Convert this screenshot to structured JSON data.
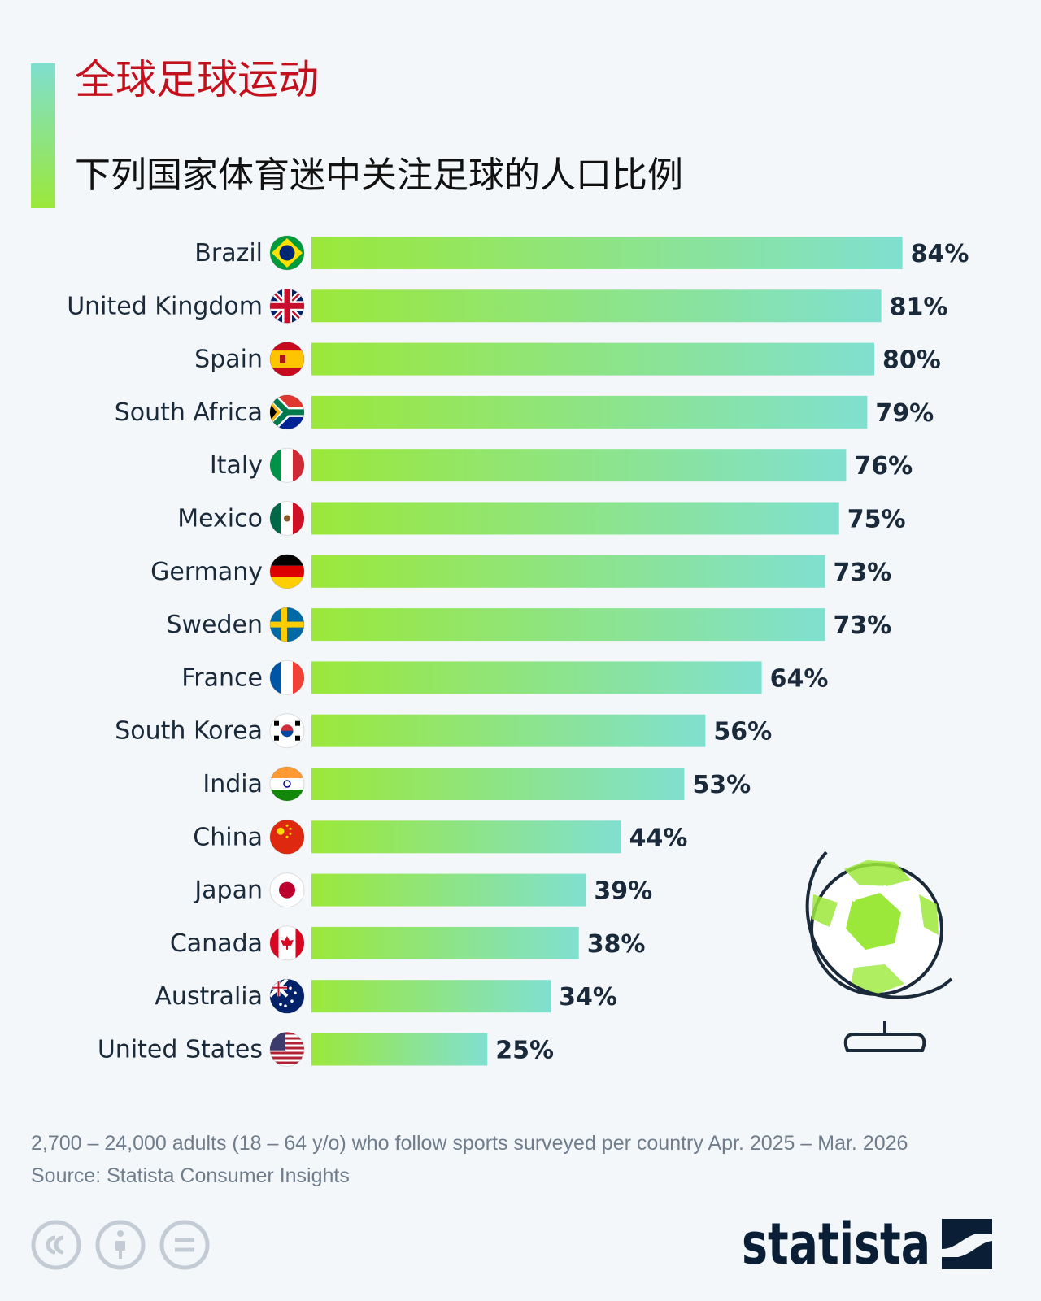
{
  "title": "全球足球运动",
  "subtitle": "下列国家体育迷中关注足球的人口比例",
  "colors": {
    "title": "#c4101c",
    "bar_start": "#9be83a",
    "bar_end": "#80e0d0",
    "text_dark": "#1a2a3a"
  },
  "chart_data": {
    "type": "bar",
    "orientation": "horizontal",
    "title": "全球足球运动",
    "subtitle": "下列国家体育迷中关注足球的人口比例",
    "categories": [
      "Brazil",
      "United Kingdom",
      "Spain",
      "South Africa",
      "Italy",
      "Mexico",
      "Germany",
      "Sweden",
      "France",
      "South Korea",
      "India",
      "China",
      "Japan",
      "Canada",
      "Australia",
      "United States"
    ],
    "values": [
      84,
      81,
      80,
      79,
      76,
      75,
      73,
      73,
      64,
      56,
      53,
      44,
      39,
      38,
      34,
      25
    ],
    "value_labels": [
      "84%",
      "81%",
      "80%",
      "79%",
      "76%",
      "75%",
      "73%",
      "73%",
      "64%",
      "56%",
      "53%",
      "44%",
      "39%",
      "38%",
      "34%",
      "25%"
    ],
    "unit": "%",
    "xlim": [
      0,
      100
    ],
    "grid": false,
    "legend": "none"
  },
  "flags": [
    "brazil-flag-icon",
    "uk-flag-icon",
    "spain-flag-icon",
    "south-africa-flag-icon",
    "italy-flag-icon",
    "mexico-flag-icon",
    "germany-flag-icon",
    "sweden-flag-icon",
    "france-flag-icon",
    "south-korea-flag-icon",
    "india-flag-icon",
    "china-flag-icon",
    "japan-flag-icon",
    "canada-flag-icon",
    "australia-flag-icon",
    "us-flag-icon"
  ],
  "footnote": {
    "line1": "2,700 – 24,000 adults (18 – 64 y/o) who follow sports surveyed per country Apr. 2025 – Mar. 2026",
    "line2": "Source: Statista Consumer Insights"
  },
  "license_icons": [
    "cc-icon",
    "attribution-icon",
    "no-derivatives-icon"
  ],
  "brand": {
    "name": "statista"
  },
  "illustration": "soccer-globe-icon"
}
